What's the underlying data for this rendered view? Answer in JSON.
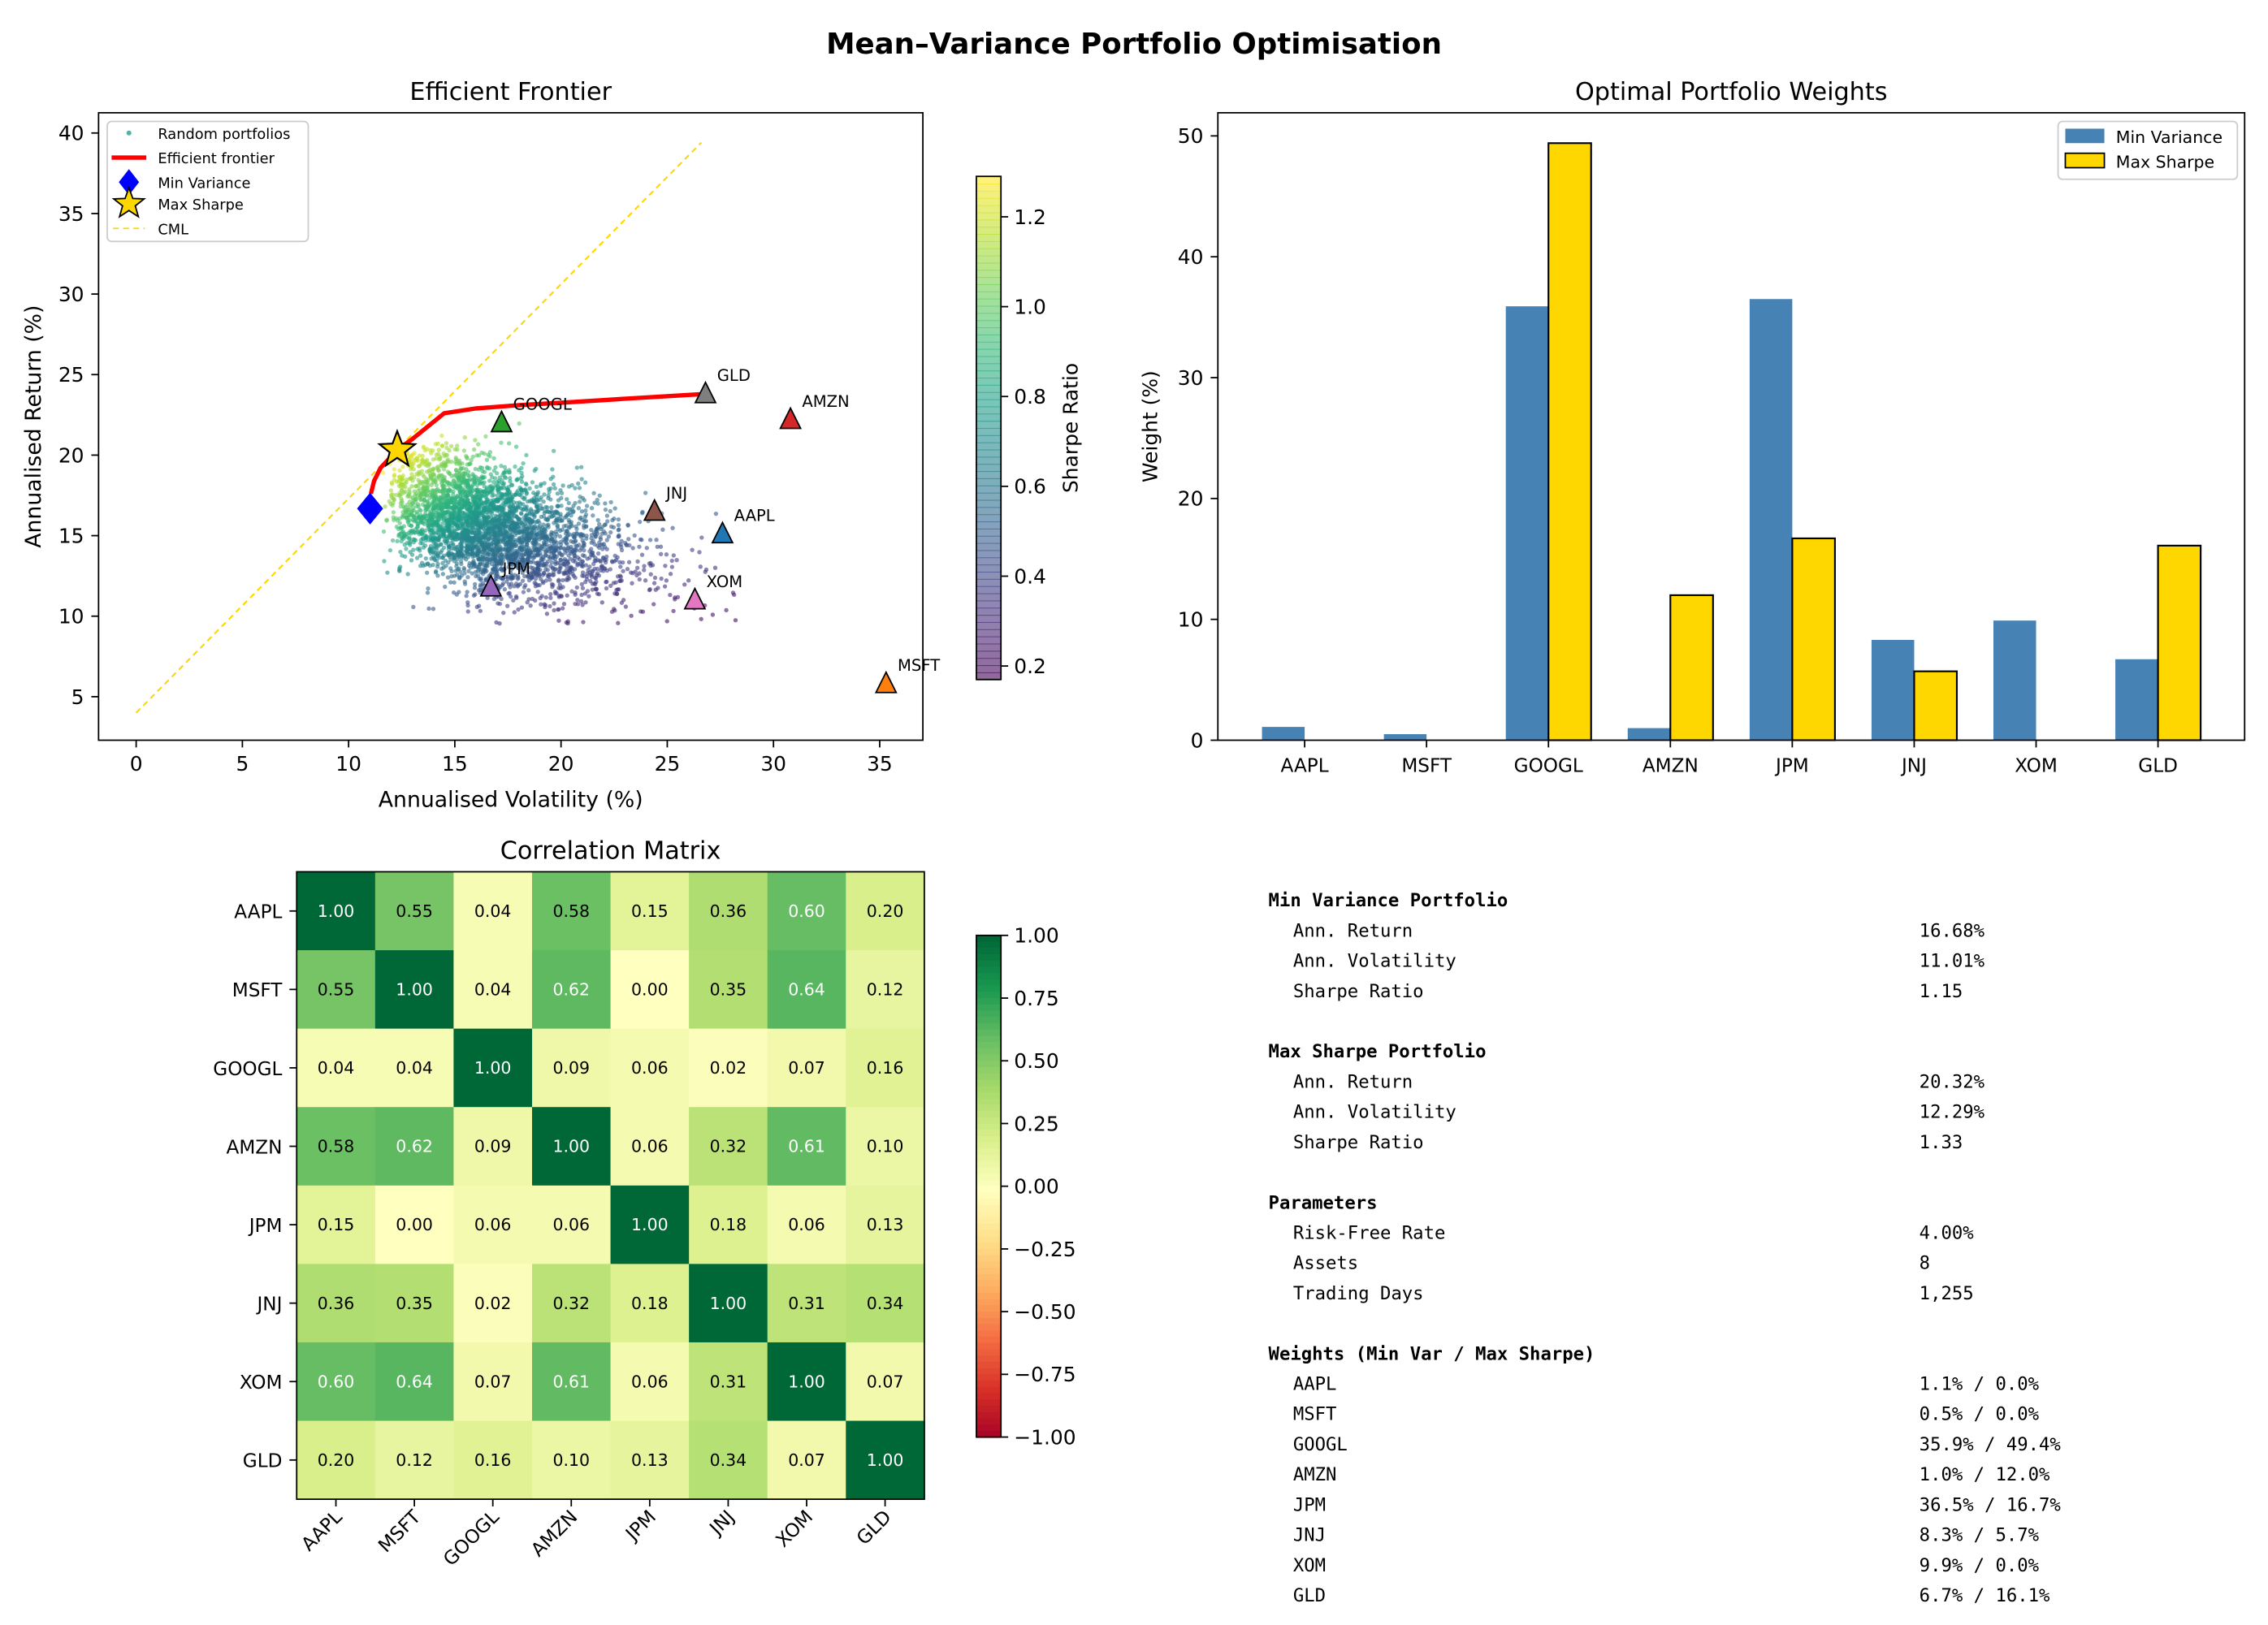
{
  "suptitle": "Mean–Variance Portfolio Optimisation",
  "chart_data": [
    {
      "type": "scatter",
      "title": "Efficient Frontier",
      "xlabel": "Annualised Volatility (%)",
      "ylabel": "Annualised Return (%)",
      "xlim": [
        -1.7,
        37
      ],
      "ylim": [
        2.3,
        41.3
      ],
      "xticks": [
        "0",
        "5",
        "10",
        "15",
        "20",
        "25",
        "30",
        "35"
      ],
      "yticks": [
        "5",
        "10",
        "15",
        "20",
        "25",
        "30",
        "35",
        "40"
      ],
      "legend": {
        "placement": "top-left",
        "entries": [
          "Random portfolios",
          "Efficient frontier",
          "Min Variance",
          "Max Sharpe",
          "CML"
        ]
      },
      "colorbar": {
        "label": "Sharpe Ratio",
        "range": [
          0.17,
          1.29
        ],
        "ticks": [
          "0.2",
          "0.4",
          "0.6",
          "0.8",
          "1.0",
          "1.2"
        ],
        "colormap": "viridis"
      },
      "assets": [
        {
          "name": "AAPL",
          "vol": 27.6,
          "ret": 15.1,
          "color": "#1f77b4"
        },
        {
          "name": "MSFT",
          "vol": 35.3,
          "ret": 5.8,
          "color": "#ff7f0e"
        },
        {
          "name": "GOOGL",
          "vol": 17.2,
          "ret": 22.0,
          "color": "#2ca02c"
        },
        {
          "name": "AMZN",
          "vol": 30.8,
          "ret": 22.2,
          "color": "#d62728"
        },
        {
          "name": "JPM",
          "vol": 16.7,
          "ret": 11.8,
          "color": "#9467bd"
        },
        {
          "name": "JNJ",
          "vol": 24.4,
          "ret": 16.5,
          "color": "#8c564b"
        },
        {
          "name": "XOM",
          "vol": 26.3,
          "ret": 11.0,
          "color": "#e377c2"
        },
        {
          "name": "GLD",
          "vol": 26.8,
          "ret": 23.8,
          "color": "#7f7f7f"
        }
      ],
      "efficient_frontier": {
        "vol": [
          11.05,
          11.2,
          11.5,
          12.29,
          13.0,
          14.5,
          16.0,
          18.0,
          20.0,
          23.0,
          26.8
        ],
        "ret": [
          17.6,
          18.4,
          19.2,
          20.32,
          21.0,
          22.6,
          22.9,
          23.1,
          23.25,
          23.5,
          23.8
        ],
        "color": "#ff0000"
      },
      "min_variance": {
        "vol": 11.01,
        "ret": 16.68,
        "color": "#0000ff"
      },
      "max_sharpe": {
        "vol": 12.29,
        "ret": 20.32,
        "color": "#ffd700"
      },
      "cml": {
        "vol": [
          0,
          26.6
        ],
        "ret": [
          4.0,
          39.4
        ],
        "color": "#ffd700"
      }
    },
    {
      "type": "bar",
      "title": "Optimal Portfolio Weights",
      "ylabel": "Weight (%)",
      "ylim": [
        0,
        52
      ],
      "yticks": [
        "0",
        "10",
        "20",
        "30",
        "40",
        "50"
      ],
      "categories": [
        "AAPL",
        "MSFT",
        "GOOGL",
        "AMZN",
        "JPM",
        "JNJ",
        "XOM",
        "GLD"
      ],
      "legend": {
        "placement": "top-right"
      },
      "series": [
        {
          "name": "Min Variance",
          "color": "#4682b4",
          "values": [
            1.1,
            0.5,
            35.9,
            1.0,
            36.5,
            8.3,
            9.9,
            6.7
          ]
        },
        {
          "name": "Max Sharpe",
          "color": "#ffd700",
          "values": [
            0.0,
            0.0,
            49.4,
            12.0,
            16.7,
            5.7,
            0.0,
            16.1
          ]
        }
      ]
    },
    {
      "type": "heatmap",
      "title": "Correlation Matrix",
      "labels": [
        "AAPL",
        "MSFT",
        "GOOGL",
        "AMZN",
        "JPM",
        "JNJ",
        "XOM",
        "GLD"
      ],
      "colormap": "RdYlGn",
      "colorbar": {
        "range": [
          -1,
          1
        ],
        "ticks": [
          "1.00",
          "0.75",
          "0.50",
          "0.25",
          "0.00",
          "−0.25",
          "−0.50",
          "−0.75",
          "−1.00"
        ]
      },
      "values": [
        [
          1.0,
          0.55,
          0.04,
          0.58,
          0.15,
          0.36,
          0.6,
          0.2
        ],
        [
          0.55,
          1.0,
          0.04,
          0.62,
          0.0,
          0.35,
          0.64,
          0.12
        ],
        [
          0.04,
          0.04,
          1.0,
          0.09,
          0.06,
          0.02,
          0.07,
          0.16
        ],
        [
          0.58,
          0.62,
          0.09,
          1.0,
          0.06,
          0.32,
          0.61,
          0.1
        ],
        [
          0.15,
          0.0,
          0.06,
          0.06,
          1.0,
          0.18,
          0.06,
          0.13
        ],
        [
          0.36,
          0.35,
          0.02,
          0.32,
          0.18,
          1.0,
          0.31,
          0.34
        ],
        [
          0.6,
          0.64,
          0.07,
          0.61,
          0.06,
          0.31,
          1.0,
          0.07
        ],
        [
          0.2,
          0.12,
          0.16,
          0.1,
          0.13,
          0.34,
          0.07,
          1.0
        ]
      ]
    }
  ],
  "summary": [
    {
      "heading": "Min Variance Portfolio",
      "rows": [
        [
          "Ann. Return",
          "16.68%"
        ],
        [
          "Ann. Volatility",
          "11.01%"
        ],
        [
          "Sharpe Ratio",
          "1.15"
        ]
      ]
    },
    {
      "heading": "Max Sharpe Portfolio",
      "rows": [
        [
          "Ann. Return",
          "20.32%"
        ],
        [
          "Ann. Volatility",
          "12.29%"
        ],
        [
          "Sharpe Ratio",
          "1.33"
        ]
      ]
    },
    {
      "heading": "Parameters",
      "rows": [
        [
          "Risk-Free Rate",
          "4.00%"
        ],
        [
          "Assets",
          "8"
        ],
        [
          "Trading Days",
          "1,255"
        ]
      ]
    },
    {
      "heading": "Weights (Min Var / Max Sharpe)",
      "rows": [
        [
          "AAPL",
          "1.1%  /  0.0%"
        ],
        [
          "MSFT",
          "0.5%  /  0.0%"
        ],
        [
          "GOOGL",
          "35.9%  /  49.4%"
        ],
        [
          "AMZN",
          "1.0%  /  12.0%"
        ],
        [
          "JPM",
          "36.5%  /  16.7%"
        ],
        [
          "JNJ",
          "8.3%  /  5.7%"
        ],
        [
          "XOM",
          "9.9%  /  0.0%"
        ],
        [
          "GLD",
          "6.7%  /  16.1%"
        ]
      ]
    }
  ]
}
